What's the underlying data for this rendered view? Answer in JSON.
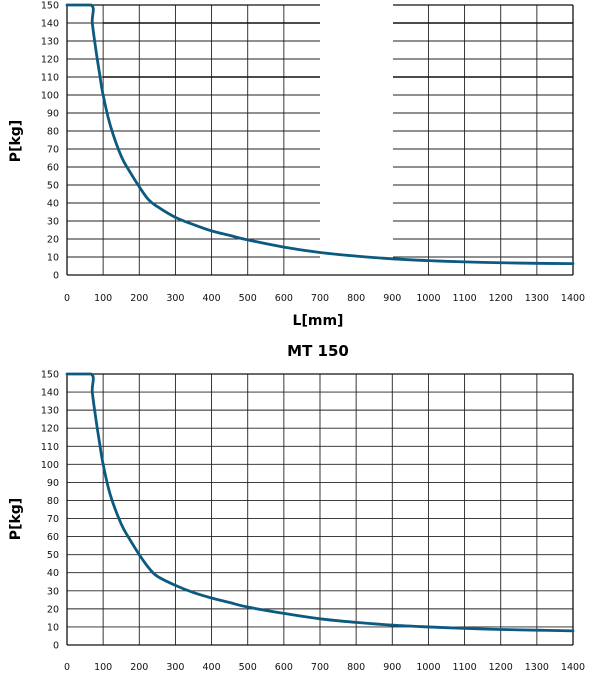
{
  "chart_data": [
    {
      "type": "line",
      "title": "",
      "xlabel": "L[mm]",
      "ylabel": "P[kg]",
      "xlim": [
        0,
        1400
      ],
      "ylim": [
        0,
        150
      ],
      "x_ticks": [
        0,
        100,
        200,
        300,
        400,
        500,
        600,
        700,
        800,
        900,
        1000,
        1100,
        1200,
        1300,
        1400
      ],
      "y_ticks": [
        0,
        10,
        20,
        30,
        40,
        50,
        60,
        70,
        80,
        90,
        100,
        110,
        120,
        130,
        140,
        150
      ],
      "grid": true,
      "line_color": "#0d5a80",
      "series": [
        {
          "x": [
            0,
            67,
            70,
            80,
            90,
            100,
            120,
            150,
            175,
            200,
            225,
            250,
            300,
            350,
            400,
            450,
            500,
            600,
            700,
            800,
            900,
            1000,
            1100,
            1200,
            1300,
            1400
          ],
          "y": [
            150,
            150,
            140,
            125,
            112,
            100,
            83,
            66,
            57,
            49,
            42,
            38,
            32,
            28,
            24.5,
            22,
            19.5,
            15.5,
            12.5,
            10.5,
            9,
            8,
            7.3,
            6.8,
            6.5,
            6.3
          ]
        }
      ]
    },
    {
      "type": "line",
      "title": "MT 150",
      "xlabel": "",
      "ylabel": "P[kg]",
      "xlim": [
        0,
        1400
      ],
      "ylim": [
        0,
        150
      ],
      "x_ticks": [
        0,
        100,
        200,
        300,
        400,
        500,
        600,
        700,
        800,
        900,
        1000,
        1100,
        1200,
        1300,
        1400
      ],
      "y_ticks": [
        0,
        10,
        20,
        30,
        40,
        50,
        60,
        70,
        80,
        90,
        100,
        110,
        120,
        130,
        140,
        150
      ],
      "grid": true,
      "line_color": "#0d5a80",
      "series": [
        {
          "x": [
            0,
            67,
            70,
            80,
            90,
            100,
            120,
            150,
            175,
            200,
            225,
            250,
            300,
            350,
            400,
            450,
            500,
            600,
            700,
            800,
            900,
            1000,
            1100,
            1200,
            1300,
            1400
          ],
          "y": [
            150,
            150,
            140,
            125,
            112,
            100,
            83,
            67,
            58,
            50,
            43,
            38,
            33,
            29,
            26,
            23.5,
            21,
            17.5,
            14.5,
            12.5,
            11,
            10,
            9.2,
            8.6,
            8.2,
            7.8
          ]
        }
      ]
    }
  ]
}
